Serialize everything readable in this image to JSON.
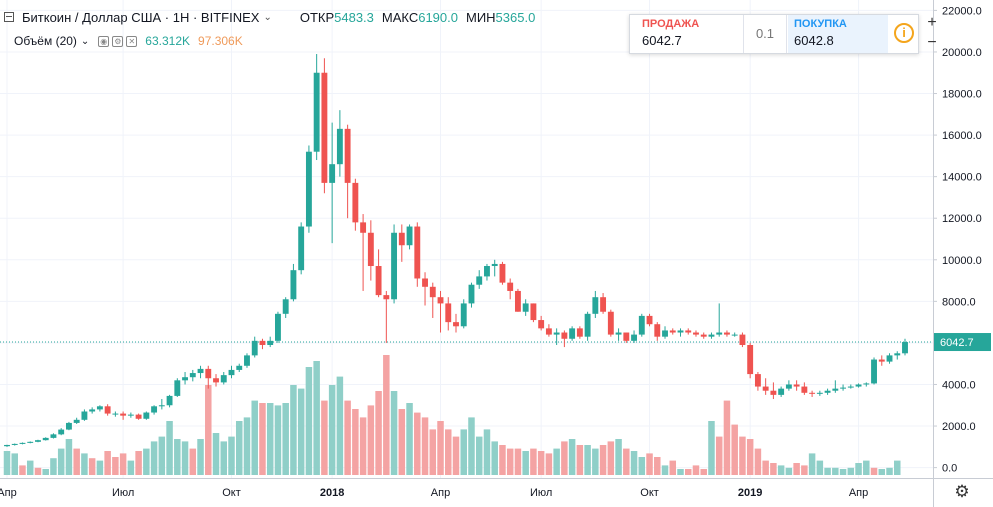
{
  "header": {
    "symbol": "Биткоин / Доллар США · 1Н · BITFINEX",
    "open_label": "ОТКР",
    "open_value": "5483.3",
    "high_label": "МАКС",
    "high_value": "6190.0",
    "low_label": "МИН",
    "low_value": "5365.0"
  },
  "volume_legend": {
    "label": "Объём (20)",
    "value1": "63.312K",
    "value2": "97.306K"
  },
  "trade": {
    "sell_label": "ПРОДАЖА",
    "sell_price": "6042.7",
    "spread": "0.1",
    "buy_label": "ПОКУПКА",
    "buy_price": "6042.8",
    "info_icon": "info-icon"
  },
  "zoom": {
    "plus": "+",
    "minus": "−"
  },
  "settings_icon": "gear-icon",
  "colors": {
    "up": "#26a69a",
    "down": "#ef5350",
    "vol_up": "#8fcfc8",
    "vol_down": "#f4a3a3",
    "price_line": "#26a69a",
    "price_label_bg": "#26a69a"
  },
  "chart_data": {
    "type": "candlestick",
    "interval": "1 week",
    "last_price": "6042.7",
    "ylim": [
      -500,
      22500
    ],
    "y_ticks": [
      22000,
      20000,
      18000,
      16000,
      14000,
      12000,
      10000,
      8000,
      6000,
      4000,
      2000,
      0
    ],
    "y_tick_labels": [
      "22000.0",
      "20000.0",
      "18000.0",
      "16000.0",
      "14000.0",
      "12000.0",
      "10000.0",
      "8000.0",
      "6000.0",
      "4000.0",
      "2000.0",
      "0.0"
    ],
    "x_labels": [
      "Апр",
      "Июл",
      "Окт",
      "2018",
      "Апр",
      "Июл",
      "Окт",
      "2019",
      "Апр"
    ],
    "x_label_candle_index": [
      0,
      15,
      29,
      42,
      56,
      69,
      83,
      96,
      110
    ],
    "candles": [
      [
        1030,
        1100,
        1000,
        1090
      ],
      [
        1090,
        1160,
        1060,
        1140
      ],
      [
        1140,
        1210,
        1120,
        1190
      ],
      [
        1190,
        1260,
        1170,
        1240
      ],
      [
        1240,
        1340,
        1220,
        1320
      ],
      [
        1320,
        1460,
        1300,
        1430
      ],
      [
        1430,
        1650,
        1400,
        1600
      ],
      [
        1600,
        1900,
        1560,
        1830
      ],
      [
        1830,
        2200,
        1800,
        2150
      ],
      [
        2150,
        2400,
        2100,
        2300
      ],
      [
        2300,
        2800,
        2250,
        2700
      ],
      [
        2700,
        2900,
        2600,
        2800
      ],
      [
        2800,
        3000,
        2700,
        2950
      ],
      [
        2950,
        3050,
        2500,
        2600
      ],
      [
        2600,
        2700,
        2450,
        2600
      ],
      [
        2600,
        2700,
        2300,
        2500
      ],
      [
        2500,
        2650,
        2400,
        2550
      ],
      [
        2550,
        2600,
        2300,
        2350
      ],
      [
        2350,
        2700,
        2300,
        2650
      ],
      [
        2650,
        3000,
        2550,
        2950
      ],
      [
        2950,
        3300,
        2800,
        3000
      ],
      [
        3000,
        3500,
        2900,
        3450
      ],
      [
        3450,
        4300,
        3400,
        4200
      ],
      [
        4200,
        4600,
        4000,
        4350
      ],
      [
        4350,
        4700,
        4150,
        4550
      ],
      [
        4550,
        4900,
        4300,
        4750
      ],
      [
        4750,
        4900,
        3800,
        4300
      ],
      [
        4300,
        4500,
        3900,
        4100
      ],
      [
        4100,
        4600,
        4000,
        4450
      ],
      [
        4450,
        4900,
        4300,
        4700
      ],
      [
        4700,
        5000,
        4600,
        4900
      ],
      [
        4900,
        5500,
        4800,
        5400
      ],
      [
        5400,
        6300,
        5300,
        6100
      ],
      [
        6100,
        6200,
        5700,
        5900
      ],
      [
        5900,
        6300,
        5800,
        6100
      ],
      [
        6100,
        7500,
        6000,
        7400
      ],
      [
        7400,
        8200,
        7200,
        8100
      ],
      [
        8100,
        9800,
        8000,
        9500
      ],
      [
        9500,
        11800,
        9300,
        11600
      ],
      [
        11600,
        15500,
        11300,
        15200
      ],
      [
        15200,
        19900,
        14800,
        19000
      ],
      [
        19000,
        19700,
        13200,
        13700
      ],
      [
        13700,
        16600,
        10800,
        14600
      ],
      [
        14600,
        17200,
        14000,
        16300
      ],
      [
        16300,
        16500,
        12000,
        13700
      ],
      [
        13700,
        13900,
        11400,
        11800
      ],
      [
        11800,
        12200,
        8500,
        11300
      ],
      [
        11300,
        11900,
        9000,
        9700
      ],
      [
        9700,
        10500,
        8200,
        8300
      ],
      [
        8300,
        8500,
        6000,
        8100
      ],
      [
        8100,
        11700,
        7900,
        11300
      ],
      [
        11300,
        11700,
        9900,
        10700
      ],
      [
        10700,
        11700,
        10500,
        11600
      ],
      [
        11600,
        11800,
        8700,
        9100
      ],
      [
        9100,
        9400,
        7800,
        8700
      ],
      [
        8700,
        8900,
        7200,
        8200
      ],
      [
        8200,
        8500,
        6500,
        7900
      ],
      [
        7900,
        8200,
        6600,
        7000
      ],
      [
        7000,
        7400,
        6500,
        6800
      ],
      [
        6800,
        8100,
        6700,
        7900
      ],
      [
        7900,
        8900,
        7700,
        8800
      ],
      [
        8800,
        9500,
        8600,
        9200
      ],
      [
        9200,
        9800,
        9000,
        9700
      ],
      [
        9700,
        10000,
        9200,
        9800
      ],
      [
        9800,
        9900,
        8800,
        8900
      ],
      [
        8900,
        9100,
        8100,
        8500
      ],
      [
        8500,
        8600,
        7500,
        7500
      ],
      [
        7500,
        8100,
        7300,
        7900
      ],
      [
        7900,
        7900,
        7000,
        7100
      ],
      [
        7100,
        7300,
        6600,
        6700
      ],
      [
        6700,
        6900,
        6300,
        6400
      ],
      [
        6400,
        6700,
        5900,
        6500
      ],
      [
        6500,
        6600,
        5800,
        6200
      ],
      [
        6200,
        6800,
        6100,
        6700
      ],
      [
        6700,
        6800,
        6200,
        6300
      ],
      [
        6300,
        7500,
        6100,
        7400
      ],
      [
        7400,
        8500,
        7200,
        8200
      ],
      [
        8200,
        8400,
        7400,
        7500
      ],
      [
        7500,
        7600,
        6300,
        6400
      ],
      [
        6400,
        6700,
        6100,
        6500
      ],
      [
        6500,
        6500,
        6000,
        6100
      ],
      [
        6100,
        6600,
        6000,
        6400
      ],
      [
        6400,
        7400,
        6300,
        7300
      ],
      [
        7300,
        7400,
        6800,
        6900
      ],
      [
        6900,
        7000,
        6100,
        6300
      ],
      [
        6300,
        6800,
        6200,
        6600
      ],
      [
        6600,
        6700,
        6400,
        6500
      ],
      [
        6500,
        6700,
        6300,
        6600
      ],
      [
        6600,
        6700,
        6400,
        6500
      ],
      [
        6500,
        6600,
        6300,
        6400
      ],
      [
        6400,
        6500,
        6200,
        6300
      ],
      [
        6300,
        6500,
        6200,
        6400
      ],
      [
        6400,
        7900,
        6300,
        6500
      ],
      [
        6500,
        6600,
        6300,
        6400
      ],
      [
        6400,
        6500,
        6300,
        6400
      ],
      [
        6400,
        6500,
        5800,
        5900
      ],
      [
        5900,
        6000,
        4300,
        4500
      ],
      [
        4500,
        4600,
        3700,
        3900
      ],
      [
        3900,
        4300,
        3500,
        3700
      ],
      [
        3700,
        4100,
        3300,
        3500
      ],
      [
        3500,
        3900,
        3400,
        3800
      ],
      [
        3800,
        4200,
        3700,
        4000
      ],
      [
        4000,
        4200,
        3700,
        3900
      ],
      [
        3900,
        4100,
        3500,
        3600
      ],
      [
        3600,
        3700,
        3400,
        3550
      ],
      [
        3550,
        3700,
        3450,
        3600
      ],
      [
        3600,
        3800,
        3500,
        3700
      ],
      [
        3700,
        4200,
        3600,
        3800
      ],
      [
        3800,
        4000,
        3700,
        3850
      ],
      [
        3850,
        4000,
        3800,
        3900
      ],
      [
        3900,
        4050,
        3850,
        4000
      ],
      [
        4000,
        4100,
        3900,
        4050
      ],
      [
        4050,
        5300,
        4000,
        5200
      ],
      [
        5200,
        5400,
        4900,
        5100
      ],
      [
        5100,
        5500,
        5000,
        5400
      ],
      [
        5400,
        5600,
        5200,
        5500
      ],
      [
        5500,
        6200,
        5400,
        6042.7
      ]
    ],
    "volume_heights": [
      0.2,
      0.18,
      0.08,
      0.12,
      0.06,
      0.05,
      0.14,
      0.22,
      0.3,
      0.22,
      0.18,
      0.14,
      0.12,
      0.2,
      0.15,
      0.18,
      0.12,
      0.2,
      0.22,
      0.28,
      0.32,
      0.45,
      0.3,
      0.28,
      0.22,
      0.3,
      0.75,
      0.35,
      0.28,
      0.32,
      0.45,
      0.48,
      0.62,
      0.6,
      0.6,
      0.58,
      0.6,
      0.75,
      0.72,
      0.9,
      0.95,
      0.62,
      0.75,
      0.82,
      0.62,
      0.55,
      0.48,
      0.58,
      0.7,
      1.0,
      0.7,
      0.55,
      0.6,
      0.52,
      0.48,
      0.38,
      0.45,
      0.38,
      0.32,
      0.38,
      0.48,
      0.32,
      0.38,
      0.28,
      0.25,
      0.22,
      0.22,
      0.2,
      0.22,
      0.2,
      0.18,
      0.22,
      0.28,
      0.3,
      0.25,
      0.25,
      0.22,
      0.25,
      0.28,
      0.3,
      0.22,
      0.2,
      0.15,
      0.18,
      0.15,
      0.08,
      0.12,
      0.05,
      0.05,
      0.08,
      0.05,
      0.45,
      0.32,
      0.62,
      0.42,
      0.32,
      0.3,
      0.22,
      0.12,
      0.1,
      0.08,
      0.06,
      0.1,
      0.08,
      0.18,
      0.12,
      0.06,
      0.06,
      0.05,
      0.06,
      0.1,
      0.12,
      0.06,
      0.05,
      0.06,
      0.12
    ],
    "volume_up": [
      1,
      1,
      0,
      1,
      0,
      1,
      1,
      1,
      1,
      0,
      1,
      0,
      1,
      0,
      0,
      0,
      1,
      0,
      1,
      1,
      1,
      1,
      1,
      1,
      0,
      1,
      0,
      1,
      1,
      1,
      1,
      1,
      1,
      0,
      1,
      1,
      1,
      1,
      1,
      1,
      1,
      0,
      1,
      1,
      0,
      0,
      0,
      0,
      0,
      0,
      1,
      0,
      1,
      0,
      0,
      0,
      0,
      0,
      0,
      1,
      1,
      1,
      1,
      1,
      0,
      0,
      0,
      1,
      0,
      0,
      0,
      1,
      0,
      1,
      0,
      1,
      1,
      0,
      0,
      1,
      0,
      1,
      1,
      0,
      0,
      1,
      0,
      1,
      0,
      0,
      0,
      1,
      0,
      0,
      0,
      0,
      0,
      0,
      0,
      0,
      1,
      1,
      0,
      0,
      1,
      1,
      1,
      1,
      1,
      1,
      1,
      1,
      0,
      1,
      1,
      1
    ]
  }
}
